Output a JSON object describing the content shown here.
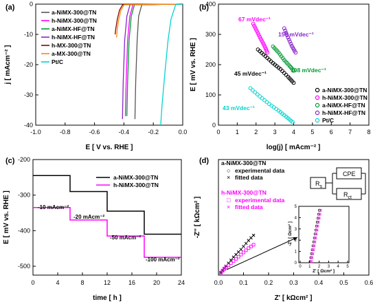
{
  "chart_data": [
    {
      "id": "a",
      "type": "line",
      "panel_label": "(a)",
      "xlabel": "E [ V vs. RHE ]",
      "ylabel": "j [ mAcm⁻² ]",
      "xlim": [
        -1.0,
        0.0
      ],
      "ylim": [
        -40,
        0
      ],
      "xticks": [
        "-1.0",
        "-0.8",
        "-0.6",
        "-0.4",
        "-0.2",
        "0.0"
      ],
      "yticks": [
        "0",
        "-10",
        "-20",
        "-30",
        "-40"
      ],
      "legend_position": "top-left",
      "series": [
        {
          "name": "a-NiMX-300@TN",
          "color": "#555555",
          "onset": -0.28,
          "x": [
            -0.28,
            -0.3,
            -0.31,
            -0.32,
            -0.325
          ],
          "y": [
            -0.5,
            -4,
            -12,
            -26,
            -38
          ]
        },
        {
          "name": "h-NiMX-300@TN",
          "color": "#ff00ff",
          "onset": -0.34,
          "x": [
            -0.34,
            -0.36,
            -0.375,
            -0.385,
            -0.39
          ],
          "y": [
            -0.5,
            -4,
            -12,
            -26,
            -37
          ]
        },
        {
          "name": "a-NiMX-HF@TN",
          "color": "#009933",
          "onset": -0.33,
          "x": [
            -0.33,
            -0.35,
            -0.365,
            -0.375,
            -0.38
          ],
          "y": [
            -0.5,
            -4,
            -12,
            -26,
            -37
          ]
        },
        {
          "name": "h-NiMX-HF@TN",
          "color": "#8822cc",
          "onset": -0.36,
          "x": [
            -0.36,
            -0.38,
            -0.395,
            -0.405,
            -0.41
          ],
          "y": [
            -0.5,
            -4,
            -12,
            -26,
            -38
          ]
        },
        {
          "name": "h-MX-300@TN",
          "color": "#8b0000",
          "onset": -0.41,
          "x": [
            -0.41,
            -0.43,
            -0.445,
            -0.455,
            -0.46
          ],
          "y": [
            -0.3,
            -2,
            -5,
            -8,
            -10
          ]
        },
        {
          "name": "a-MX-300@TN",
          "color": "#ff8800",
          "onset": -0.4,
          "x": [
            -0.4,
            -0.42,
            -0.435,
            -0.445,
            -0.45
          ],
          "y": [
            -0.3,
            -2,
            -5,
            -8,
            -11
          ]
        },
        {
          "name": "Pt/C",
          "color": "#00d4cc",
          "onset": -0.05,
          "x": [
            -0.05,
            -0.08,
            -0.1,
            -0.12,
            -0.14,
            -0.15
          ],
          "y": [
            -0.5,
            -5,
            -12,
            -22,
            -33,
            -40
          ]
        }
      ]
    },
    {
      "id": "b",
      "type": "scatter",
      "panel_label": "(b)",
      "xlabel": "log(j) [ mAcm⁻² ]",
      "ylabel": "E [ mV vs. RHE ]",
      "xlim": [
        0,
        8
      ],
      "ylim": [
        0,
        400
      ],
      "xticks": [
        "0",
        "1",
        "2",
        "3",
        "4",
        "5",
        "6",
        "7",
        "8"
      ],
      "yticks": [
        "0",
        "100",
        "200",
        "300",
        "400"
      ],
      "legend_position": "bottom-right",
      "series": [
        {
          "name": "a-NiMX-300@TN",
          "color": "#000000",
          "x": [
            2.1,
            2.5,
            2.9,
            3.3,
            3.7,
            4.0
          ],
          "y": [
            250,
            228,
            205,
            185,
            160,
            140
          ]
        },
        {
          "name": "h-NiMX-300@TN",
          "color": "#ff00ff",
          "x": [
            1.85,
            2.05,
            2.25,
            2.45,
            2.6
          ],
          "y": [
            335,
            310,
            285,
            262,
            240
          ]
        },
        {
          "name": "a-NiMX-HF@TN",
          "color": "#009933",
          "x": [
            2.9,
            3.2,
            3.5,
            3.8,
            4.0
          ],
          "y": [
            260,
            240,
            215,
            195,
            180
          ]
        },
        {
          "name": "h-NiMX-HF@TN",
          "color": "#8822cc",
          "x": [
            3.5,
            3.7,
            3.9,
            4.1
          ],
          "y": [
            320,
            290,
            262,
            240
          ]
        },
        {
          "name": "Pt/C",
          "color": "#00d4cc",
          "x": [
            1.7,
            2.2,
            2.7,
            3.2,
            3.6,
            3.95
          ],
          "y": [
            122,
            95,
            70,
            48,
            28,
            10
          ]
        }
      ],
      "annotations": [
        "67 mVdec⁻¹",
        "150 mVdec⁻¹",
        "45 mVdec⁻¹",
        "108 mVdec⁻¹",
        "43 mVdec⁻¹"
      ]
    },
    {
      "id": "c",
      "type": "line",
      "panel_label": "(c)",
      "xlabel": "time [ h ]",
      "ylabel": "E [ mV vs. RHE ]",
      "xlim": [
        0,
        24
      ],
      "ylim": [
        -525,
        -200
      ],
      "xticks": [
        "0",
        "4",
        "8",
        "12",
        "16",
        "20",
        "24"
      ],
      "yticks": [
        "-200",
        "-300",
        "-400",
        "-500"
      ],
      "legend_position": "top-right",
      "series": [
        {
          "name": "a-NiMX-300@TN",
          "color": "#000000",
          "x": [
            0,
            6,
            6,
            12,
            12,
            18,
            18,
            24
          ],
          "y": [
            -245,
            -245,
            -290,
            -290,
            -345,
            -345,
            -410,
            -410
          ]
        },
        {
          "name": "h-NiMX-300@TN",
          "color": "#ff00ff",
          "x": [
            0,
            6,
            6,
            12,
            12,
            18,
            18,
            24
          ],
          "y": [
            -335,
            -335,
            -370,
            -370,
            -415,
            -415,
            -475,
            -475
          ]
        }
      ],
      "annotations": [
        "-10 mAcm⁻²",
        "-20 mAcm⁻²",
        "-50 mAcm⁻²",
        "-100 mAcm⁻²"
      ]
    },
    {
      "id": "d",
      "type": "scatter",
      "panel_label": "(d)",
      "xlabel": "Z' [ kΩcm² ]",
      "ylabel": "-Z'' [ kΩcm² ]",
      "xlim": [
        0,
        0.6
      ],
      "ylim": [
        0,
        0.9
      ],
      "xticks": [
        "0.0",
        "0.1",
        "0.2",
        "0.3",
        "0.4",
        "0.5",
        "0.6"
      ],
      "legend_groups": [
        {
          "title": "a-NiMX-300@TN",
          "color": "#000000",
          "items": [
            "experimental data",
            "fitted data"
          ]
        },
        {
          "title": "h-NiMX-300@TN",
          "color": "#ff00ff",
          "items": [
            "experimental data",
            "fitted data"
          ]
        }
      ],
      "series": [
        {
          "name": "a-NiMX-300@TN experimental",
          "color": "#000000",
          "x": [
            0.01,
            0.03,
            0.06,
            0.09,
            0.12,
            0.15
          ],
          "y": [
            0.02,
            0.07,
            0.14,
            0.2,
            0.27,
            0.33
          ]
        },
        {
          "name": "h-NiMX-300@TN experimental",
          "color": "#ff00ff",
          "x": [
            0.01,
            0.03,
            0.06,
            0.09,
            0.12,
            0.15
          ],
          "y": [
            0.02,
            0.06,
            0.11,
            0.16,
            0.21,
            0.25
          ]
        }
      ],
      "circuit": {
        "rs": "R",
        "rs_sub": "s",
        "cpe": "CPE",
        "rct": "R",
        "rct_sub": "ct"
      },
      "inset": {
        "xlabel": "Z' [ Ωcm² ]",
        "ylabel": "-Z'' [ Ωcm² ]",
        "xticks": [
          "0",
          "1",
          "2",
          "3",
          "4",
          "5"
        ],
        "yticks": [
          "0",
          "1",
          "2",
          "3",
          "4",
          "5"
        ]
      }
    }
  ]
}
